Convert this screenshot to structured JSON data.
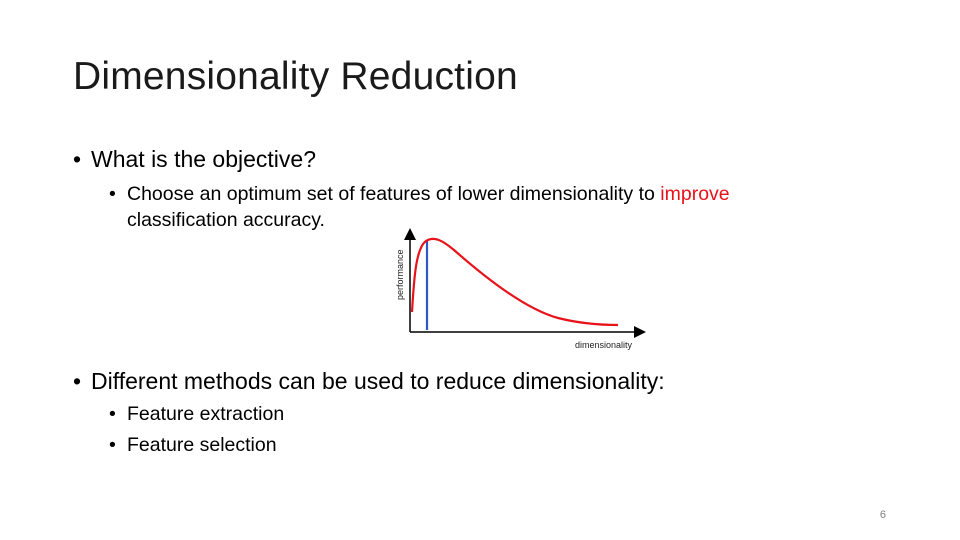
{
  "slide": {
    "title": "Dimensionality Reduction",
    "page_number": "6"
  },
  "bullets": {
    "objective_question": "What is the objective?",
    "objective_answer_part1": "Choose an optimum set of features of lower dimensionality to ",
    "objective_answer_highlight": "improve",
    "objective_answer_part2": "classification accuracy.",
    "methods_intro": "Different methods can be used to reduce dimensionality:",
    "methods": [
      "Feature extraction",
      "Feature selection"
    ]
  },
  "figure": {
    "xlabel": "dimensionality",
    "ylabel": "performance",
    "curve_color": "#e8121a",
    "optimum_line_color": "#2f56c6",
    "highlight_color": "#e8121a"
  }
}
